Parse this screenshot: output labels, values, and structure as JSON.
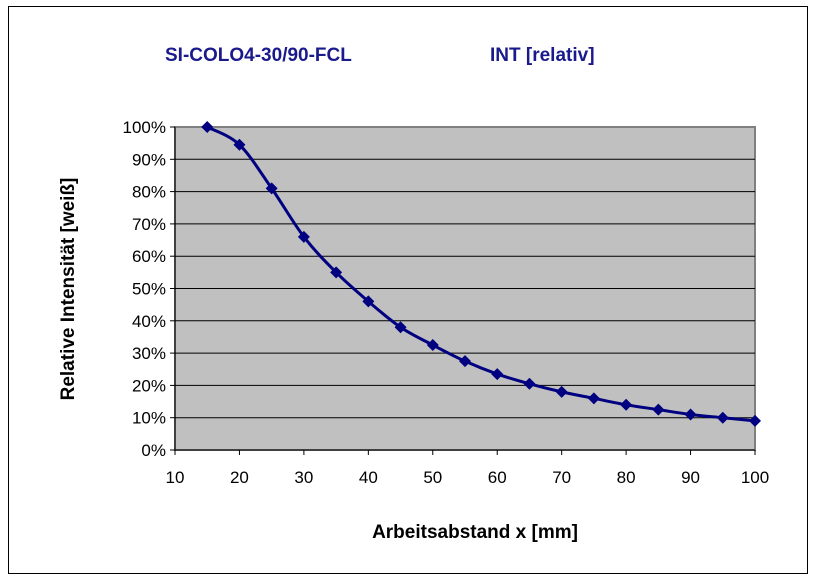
{
  "chart_data": {
    "type": "line",
    "title_left": "SI-COLO4-30/90-FCL",
    "title_right": "INT [relativ]",
    "xlabel": "Arbeitsabstand x [mm]",
    "ylabel": "Relative Intensität [weiß]",
    "xlim": [
      10,
      100
    ],
    "ylim": [
      0,
      100
    ],
    "x_ticks": [
      "10",
      "20",
      "30",
      "40",
      "50",
      "60",
      "70",
      "80",
      "90",
      "100"
    ],
    "y_ticks": [
      "0%",
      "10%",
      "20%",
      "30%",
      "40%",
      "50%",
      "60%",
      "70%",
      "80%",
      "90%",
      "100%"
    ],
    "grid": true,
    "plot_background": "#c0c0c0",
    "series": [
      {
        "color": "#000080",
        "marker": "diamond",
        "x": [
          15,
          20,
          25,
          30,
          35,
          40,
          45,
          50,
          55,
          60,
          65,
          70,
          75,
          80,
          85,
          90,
          95,
          100
        ],
        "y": [
          100,
          94.5,
          81,
          66,
          55,
          46,
          38,
          32.5,
          27.5,
          23.5,
          20.5,
          18,
          16,
          14,
          12.5,
          11,
          10,
          9
        ]
      }
    ]
  }
}
